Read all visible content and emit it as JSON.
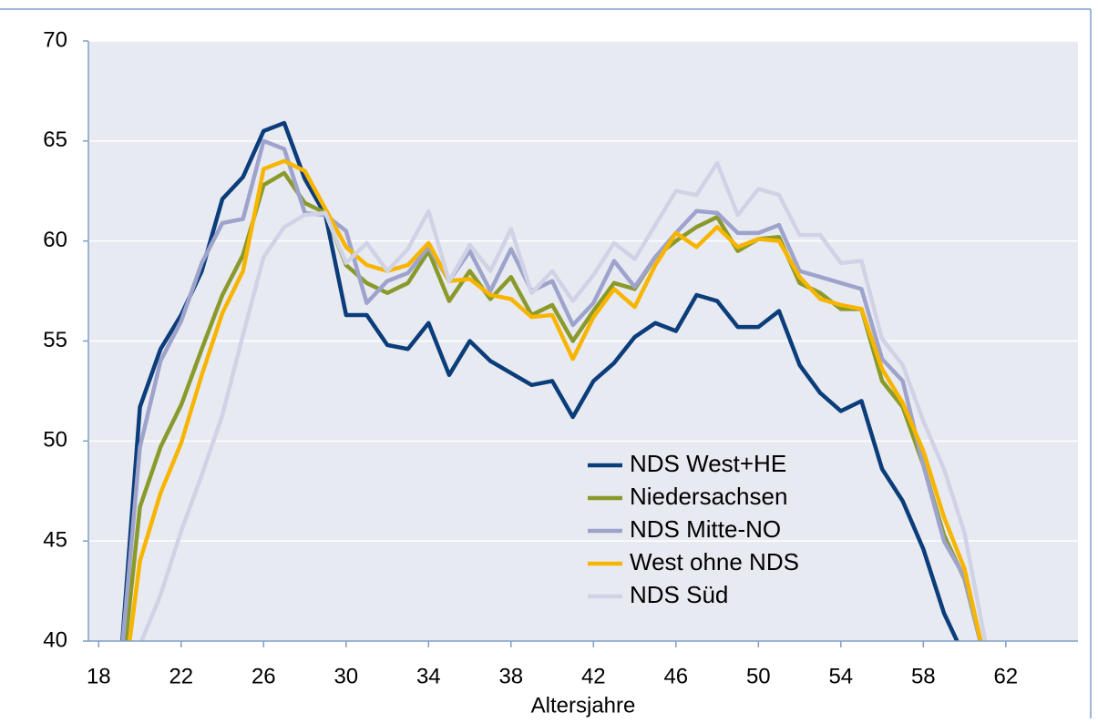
{
  "chart_data": {
    "type": "line",
    "x_label": "Altersjahre",
    "x": [
      19,
      20,
      21,
      22,
      23,
      24,
      25,
      26,
      27,
      28,
      29,
      30,
      31,
      32,
      33,
      34,
      35,
      36,
      37,
      38,
      39,
      40,
      41,
      42,
      43,
      44,
      45,
      46,
      47,
      48,
      49,
      50,
      51,
      52,
      53,
      54,
      55,
      56,
      57,
      58,
      59,
      60,
      61
    ],
    "series": [
      {
        "name": "NDS West+HE",
        "color": "#0b3d7a",
        "values": [
          38,
          51.7,
          54.6,
          56.3,
          58.5,
          62.1,
          63.2,
          65.5,
          65.9,
          63.1,
          61.3,
          56.3,
          56.3,
          54.8,
          54.6,
          55.9,
          53.3,
          55.0,
          54.0,
          53.4,
          52.8,
          53.0,
          51.2,
          53.0,
          53.9,
          55.2,
          55.9,
          55.5,
          57.3,
          57.0,
          55.7,
          55.7,
          56.5,
          53.8,
          52.4,
          51.5,
          52.0,
          48.6,
          47.0,
          44.6,
          41.4,
          39.2,
          null
        ]
      },
      {
        "name": "Niedersachsen",
        "color": "#8a9a2a",
        "values": [
          37,
          46.7,
          49.7,
          51.8,
          54.6,
          57.3,
          59.3,
          62.8,
          63.4,
          61.9,
          61.4,
          58.8,
          57.9,
          57.4,
          57.9,
          59.5,
          57.0,
          58.5,
          57.1,
          58.2,
          56.3,
          56.8,
          55.0,
          56.5,
          57.9,
          57.6,
          59.2,
          60.0,
          60.7,
          61.2,
          59.5,
          60.1,
          60.2,
          57.9,
          57.4,
          56.6,
          56.6,
          53.0,
          51.7,
          48.8,
          45.3,
          43.1,
          39
        ]
      },
      {
        "name": "NDS Mitte-NO",
        "color": "#9ea3cc",
        "values": [
          38,
          49.7,
          54.0,
          56.0,
          58.9,
          60.9,
          61.1,
          65.0,
          64.6,
          61.4,
          61.3,
          60.5,
          56.9,
          58.0,
          58.4,
          59.7,
          58.0,
          59.5,
          57.5,
          59.6,
          57.5,
          58.0,
          55.8,
          56.9,
          59.0,
          57.7,
          59.2,
          60.4,
          61.5,
          61.4,
          60.4,
          60.4,
          60.8,
          58.5,
          58.2,
          57.9,
          57.6,
          54.1,
          53.0,
          48.8,
          45.0,
          43.2,
          39
        ]
      },
      {
        "name": "West ohne NDS",
        "color": "#f7b500",
        "values": [
          36,
          44,
          47.4,
          49.9,
          53.3,
          56.4,
          58.5,
          63.6,
          64.0,
          63.5,
          61.6,
          59.7,
          58.8,
          58.5,
          58.8,
          59.9,
          58.0,
          58.1,
          57.3,
          57.1,
          56.2,
          56.3,
          54.1,
          56.2,
          57.6,
          56.7,
          58.8,
          60.4,
          59.7,
          60.7,
          59.7,
          60.1,
          60.0,
          58.2,
          57.1,
          56.8,
          56.6,
          53.6,
          51.9,
          49.5,
          46.2,
          43.6,
          39
        ]
      },
      {
        "name": "NDS Süd",
        "color": "#d0d3e6",
        "values": [
          null,
          39.8,
          42.3,
          45.5,
          48.3,
          51.3,
          55.3,
          59.2,
          60.7,
          61.3,
          61.4,
          58.9,
          59.9,
          58.5,
          59.6,
          61.5,
          58.0,
          59.8,
          58.5,
          60.6,
          57.4,
          58.5,
          57.0,
          58.3,
          59.9,
          59.1,
          60.8,
          62.5,
          62.3,
          63.9,
          61.3,
          62.6,
          62.3,
          60.3,
          60.3,
          58.9,
          59.0,
          55.1,
          53.8,
          51.0,
          48.6,
          45.4,
          40
        ]
      }
    ],
    "xlim": [
      17.5,
      65.5
    ],
    "xticks": [
      18,
      22,
      26,
      30,
      34,
      38,
      42,
      46,
      50,
      54,
      58,
      62
    ],
    "ylim": [
      40,
      70
    ],
    "yticks": [
      40,
      45,
      50,
      55,
      60,
      65,
      70
    ],
    "grid": true,
    "legend": "lower-center"
  }
}
